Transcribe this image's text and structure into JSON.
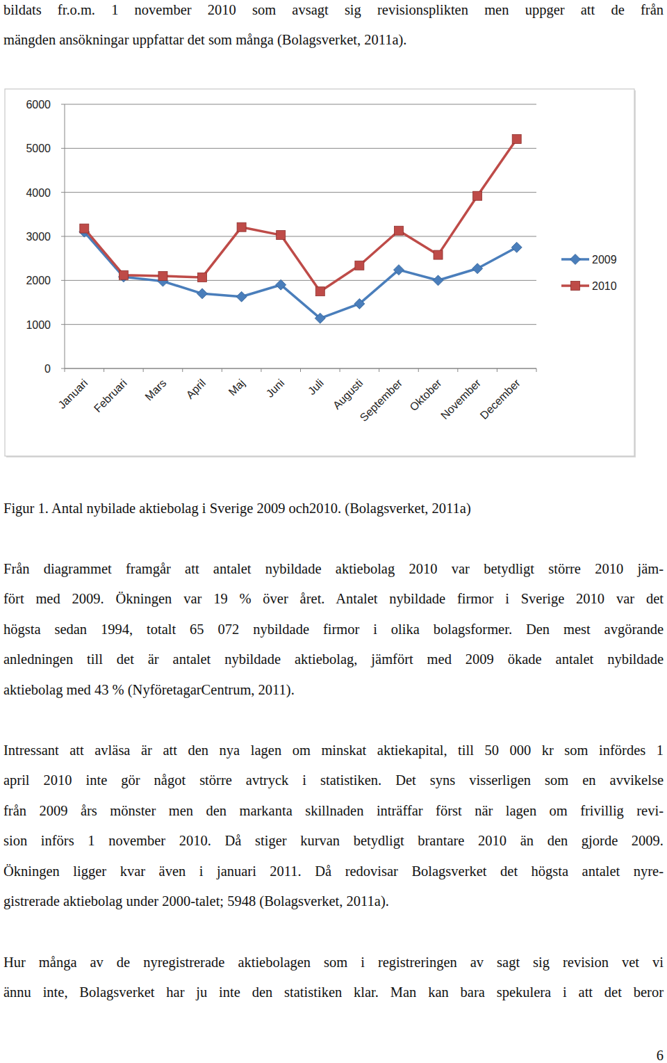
{
  "text": {
    "intro": [
      "bildats fr.o.m. 1 november 2010 som avsagt sig revisionsplikten men uppger att de från",
      "mängden ansökningar uppfattar det som många (Bolagsverket, 2011a)."
    ],
    "caption": "Figur 1. Antal nybilade aktiebolag i Sverige 2009 och2010. (Bolagsverket, 2011a)",
    "paragraphs": [
      [
        "Från diagrammet framgår att antalet nybildade aktiebolag 2010 var betydligt större 2010 jäm-",
        "fört med 2009. Ökningen var 19 % över året. Antalet nybildade firmor i Sverige 2010 var det",
        "högsta sedan 1994, totalt 65 072 nybildade firmor i olika bolagsformer. Den mest avgörande",
        "anledningen till det är antalet nybildade aktiebolag, jämfört med 2009 ökade antalet nybildade",
        "aktiebolag med 43 % (NyföretagarCentrum, 2011)."
      ],
      [
        "Intressant att avläsa är att den nya lagen om minskat aktiekapital, till 50 000 kr som infördes 1",
        "april 2010 inte gör något större avtryck i statistiken. Det syns visserligen som en avvikelse",
        "från 2009 års mönster men den markanta skillnaden inträffar först när lagen om frivillig revi-",
        "sion införs 1 november 2010. Då stiger kurvan betydligt brantare 2010 än den gjorde 2009.",
        "Ökningen ligger kvar även i januari 2011. Då redovisar Bolagsverket det högsta antalet nyre-",
        "gistrerade aktiebolag under 2000-talet; 5948 (Bolagsverket, 2011a)."
      ],
      [
        "Hur många av de nyregistrerade aktiebolagen som i registreringen av sagt sig revision vet vi",
        "ännu inte, Bolagsverket har ju inte den statistiken klar.  Man kan bara spekulera i att det beror"
      ]
    ],
    "page_number": 6
  },
  "chart_data": {
    "type": "line",
    "categories": [
      "Januari",
      "Februari",
      "Mars",
      "April",
      "Maj",
      "Juni",
      "Juli",
      "Augusti",
      "September",
      "Oktober",
      "November",
      "December"
    ],
    "series": [
      {
        "name": "2009",
        "color": "#4a7ebb",
        "marker": "diamond",
        "line_style": "solid",
        "values": [
          3100,
          2080,
          1980,
          1700,
          1630,
          1900,
          1140,
          1470,
          2240,
          2000,
          2270,
          2750
        ]
      },
      {
        "name": "2010",
        "color": "#be4b48",
        "marker": "square",
        "line_style": "solid",
        "values": [
          3180,
          2120,
          2100,
          2070,
          3210,
          3030,
          1750,
          2340,
          3130,
          2580,
          3920,
          5210
        ]
      }
    ],
    "ylim": [
      0,
      6000
    ],
    "yticks": [
      0,
      1000,
      2000,
      3000,
      4000,
      5000,
      6000
    ],
    "grid": true,
    "legend": "right"
  }
}
